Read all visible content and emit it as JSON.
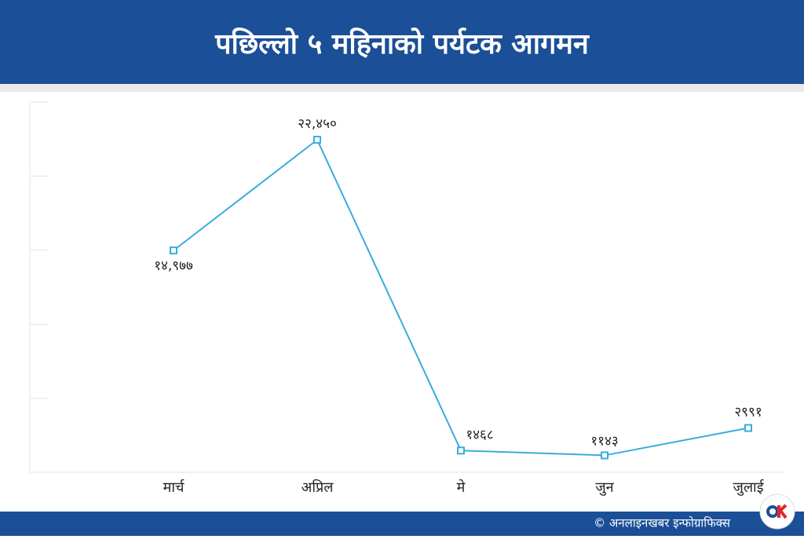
{
  "chart_data": {
    "type": "line",
    "title": "पछिल्लो ५ महिनाको पर्यटक आगमन",
    "categories": [
      "मार्च",
      "अप्रिल",
      "मे",
      "जुन",
      "जुलाई"
    ],
    "values": [
      14977,
      22450,
      1468,
      1143,
      2991
    ],
    "value_labels": [
      "१४,९७७",
      "२२,४५०",
      "१४६८",
      "११४३",
      "२९९१"
    ],
    "color": "#3aabdc",
    "ylim": [
      0,
      25000
    ],
    "yticks": [
      0,
      5000,
      10000,
      15000,
      20000,
      25000
    ],
    "source": "© अनलाइनखबर इन्फोग्राफिक्स"
  }
}
